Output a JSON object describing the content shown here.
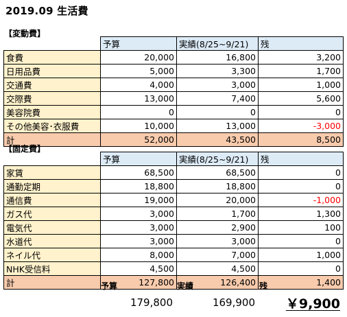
{
  "title": "2019.09  生活費",
  "variable": {
    "label": "【変動費】",
    "headers": [
      "予算",
      "実績(8/25~9/21)",
      "残"
    ],
    "rows": [
      {
        "name": "食費",
        "budget": "20,000",
        "actual": "16,800",
        "remain": "3,200",
        "negative": false
      },
      {
        "name": "日用品費",
        "budget": "5,000",
        "actual": "3,300",
        "remain": "1,700",
        "negative": false
      },
      {
        "name": "交通費",
        "budget": "4,000",
        "actual": "3,000",
        "remain": "1,000",
        "negative": false
      },
      {
        "name": "交際費",
        "budget": "13,000",
        "actual": "7,400",
        "remain": "5,600",
        "negative": false
      },
      {
        "name": "美容院費",
        "budget": "0",
        "actual": "0",
        "remain": "0",
        "negative": false
      },
      {
        "name": "その他美容･衣服費",
        "budget": "10,000",
        "actual": "13,000",
        "remain": "-3,000",
        "negative": true
      }
    ],
    "total": {
      "name": "計",
      "budget": "52,000",
      "actual": "43,500",
      "remain": "8,500"
    }
  },
  "fixed": {
    "label": "【固定費】",
    "headers": [
      "予算",
      "実績(8/25~9/21)",
      "残"
    ],
    "rows": [
      {
        "name": "家賃",
        "budget": "68,500",
        "actual": "68,500",
        "remain": "0",
        "negative": false
      },
      {
        "name": "通勤定期",
        "budget": "18,800",
        "actual": "18,800",
        "remain": "0",
        "negative": false
      },
      {
        "name": "通信費",
        "budget": "19,000",
        "actual": "20,000",
        "remain": "-1,000",
        "negative": true
      },
      {
        "name": "ガス代",
        "budget": "3,000",
        "actual": "1,700",
        "remain": "1,300",
        "negative": false
      },
      {
        "name": "電気代",
        "budget": "3,000",
        "actual": "2,900",
        "remain": "100",
        "negative": false
      },
      {
        "name": "水道代",
        "budget": "3,000",
        "actual": "3,000",
        "remain": "0",
        "negative": false
      },
      {
        "name": "ネイル代",
        "budget": "8,000",
        "actual": "7,000",
        "remain": "1,000",
        "negative": false
      },
      {
        "name": "NHK受信料",
        "budget": "4,500",
        "actual": "4,500",
        "remain": "0",
        "negative": false
      }
    ],
    "total": {
      "name": "計",
      "budget": "127,800",
      "actual": "126,400",
      "remain": "1,400"
    }
  },
  "summary": {
    "budget_label": "予算",
    "actual_label": "実績",
    "remain_label": "残",
    "budget": "179,800",
    "actual": "169,900",
    "remain": "￥9,900"
  },
  "colors": {
    "header_fill": "#ddebf7",
    "label_fill": "#fff2cc",
    "total_fill": "#f8cbad",
    "negative_text": "#ff0000"
  }
}
